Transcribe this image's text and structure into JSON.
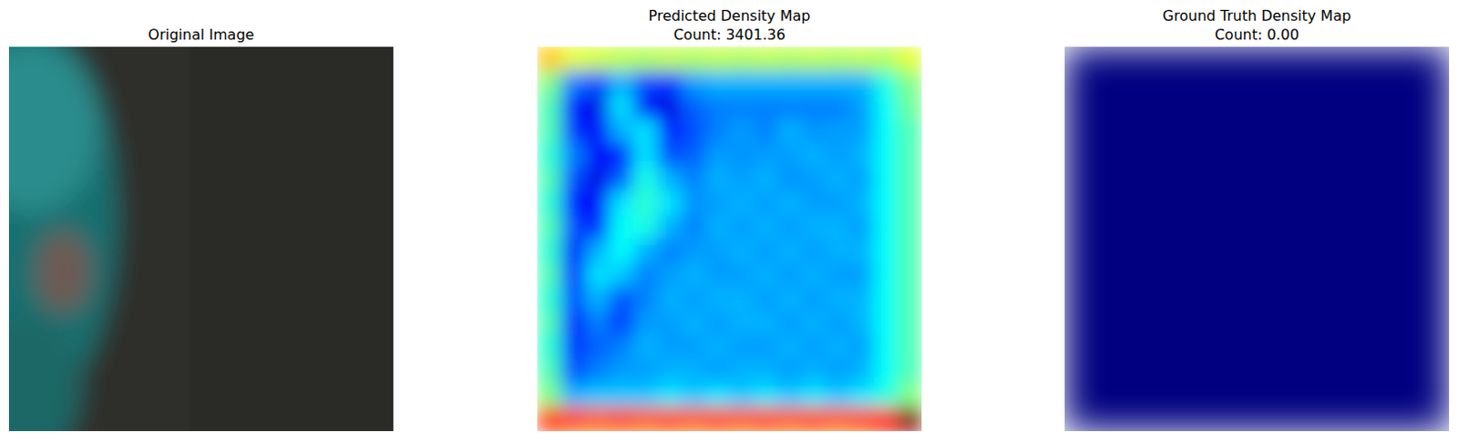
{
  "chart_data": [
    {
      "type": "image",
      "title": "Original Image",
      "tick_labels": false
    },
    {
      "type": "heatmap",
      "title": "Predicted Density Map",
      "subtitle": "Count: 3401.36",
      "tick_labels": false,
      "color_range": [
        0,
        1
      ],
      "cells": [
        [
          0.68,
          0.6,
          0.58,
          0.56,
          0.55,
          0.56,
          0.55,
          0.56,
          0.55,
          0.56,
          0.55,
          0.56,
          0.55,
          0.56,
          0.55,
          0.6
        ],
        [
          0.5,
          0.25,
          0.2,
          0.3,
          0.2,
          0.18,
          0.28,
          0.3,
          0.3,
          0.3,
          0.3,
          0.3,
          0.3,
          0.3,
          0.4,
          0.5
        ],
        [
          0.45,
          0.15,
          0.1,
          0.35,
          0.12,
          0.1,
          0.22,
          0.25,
          0.25,
          0.25,
          0.25,
          0.25,
          0.25,
          0.28,
          0.38,
          0.48
        ],
        [
          0.45,
          0.18,
          0.12,
          0.3,
          0.35,
          0.15,
          0.2,
          0.25,
          0.28,
          0.25,
          0.3,
          0.27,
          0.28,
          0.28,
          0.38,
          0.45
        ],
        [
          0.42,
          0.25,
          0.12,
          0.15,
          0.35,
          0.2,
          0.22,
          0.28,
          0.27,
          0.28,
          0.28,
          0.3,
          0.28,
          0.3,
          0.38,
          0.45
        ],
        [
          0.45,
          0.2,
          0.1,
          0.22,
          0.4,
          0.3,
          0.25,
          0.3,
          0.28,
          0.3,
          0.27,
          0.28,
          0.3,
          0.28,
          0.38,
          0.45
        ],
        [
          0.42,
          0.15,
          0.12,
          0.35,
          0.42,
          0.35,
          0.27,
          0.28,
          0.3,
          0.28,
          0.3,
          0.28,
          0.28,
          0.3,
          0.38,
          0.45
        ],
        [
          0.45,
          0.2,
          0.15,
          0.38,
          0.4,
          0.3,
          0.25,
          0.3,
          0.28,
          0.3,
          0.28,
          0.3,
          0.3,
          0.28,
          0.38,
          0.45
        ],
        [
          0.42,
          0.12,
          0.3,
          0.38,
          0.3,
          0.25,
          0.28,
          0.28,
          0.3,
          0.28,
          0.3,
          0.28,
          0.3,
          0.3,
          0.38,
          0.45
        ],
        [
          0.45,
          0.15,
          0.35,
          0.32,
          0.25,
          0.28,
          0.3,
          0.28,
          0.28,
          0.3,
          0.28,
          0.3,
          0.28,
          0.28,
          0.38,
          0.45
        ],
        [
          0.42,
          0.2,
          0.3,
          0.2,
          0.25,
          0.3,
          0.28,
          0.3,
          0.3,
          0.28,
          0.3,
          0.28,
          0.3,
          0.3,
          0.38,
          0.45
        ],
        [
          0.45,
          0.15,
          0.25,
          0.18,
          0.28,
          0.28,
          0.3,
          0.28,
          0.3,
          0.3,
          0.28,
          0.3,
          0.28,
          0.3,
          0.38,
          0.45
        ],
        [
          0.42,
          0.18,
          0.22,
          0.25,
          0.3,
          0.28,
          0.28,
          0.3,
          0.28,
          0.28,
          0.3,
          0.28,
          0.3,
          0.28,
          0.38,
          0.45
        ],
        [
          0.45,
          0.2,
          0.25,
          0.28,
          0.28,
          0.3,
          0.3,
          0.28,
          0.3,
          0.3,
          0.28,
          0.3,
          0.28,
          0.3,
          0.38,
          0.45
        ],
        [
          0.5,
          0.3,
          0.32,
          0.32,
          0.32,
          0.35,
          0.32,
          0.35,
          0.32,
          0.35,
          0.32,
          0.35,
          0.32,
          0.35,
          0.4,
          0.5
        ],
        [
          0.82,
          0.8,
          0.78,
          0.8,
          0.78,
          0.8,
          0.78,
          0.8,
          0.78,
          0.8,
          0.78,
          0.8,
          0.78,
          0.8,
          0.85,
          1.0
        ]
      ]
    },
    {
      "type": "heatmap",
      "title": "Ground Truth Density Map",
      "subtitle": "Count: 0.00",
      "tick_labels": false,
      "color_range": [
        0,
        1
      ],
      "cells": [
        [
          0,
          0,
          0,
          0,
          0,
          0,
          0,
          0
        ],
        [
          0,
          0,
          0,
          0,
          0,
          0,
          0,
          0
        ],
        [
          0,
          0,
          0,
          0,
          0,
          0,
          0,
          0
        ],
        [
          0,
          0,
          0,
          0,
          0,
          0,
          0,
          0
        ],
        [
          0,
          0,
          0,
          0,
          0,
          0,
          0,
          0
        ],
        [
          0,
          0,
          0,
          0,
          0,
          0,
          0,
          0
        ],
        [
          0,
          0,
          0,
          0,
          0,
          0,
          0,
          0
        ],
        [
          0,
          0,
          0,
          0,
          0,
          0,
          0,
          0
        ]
      ]
    }
  ]
}
